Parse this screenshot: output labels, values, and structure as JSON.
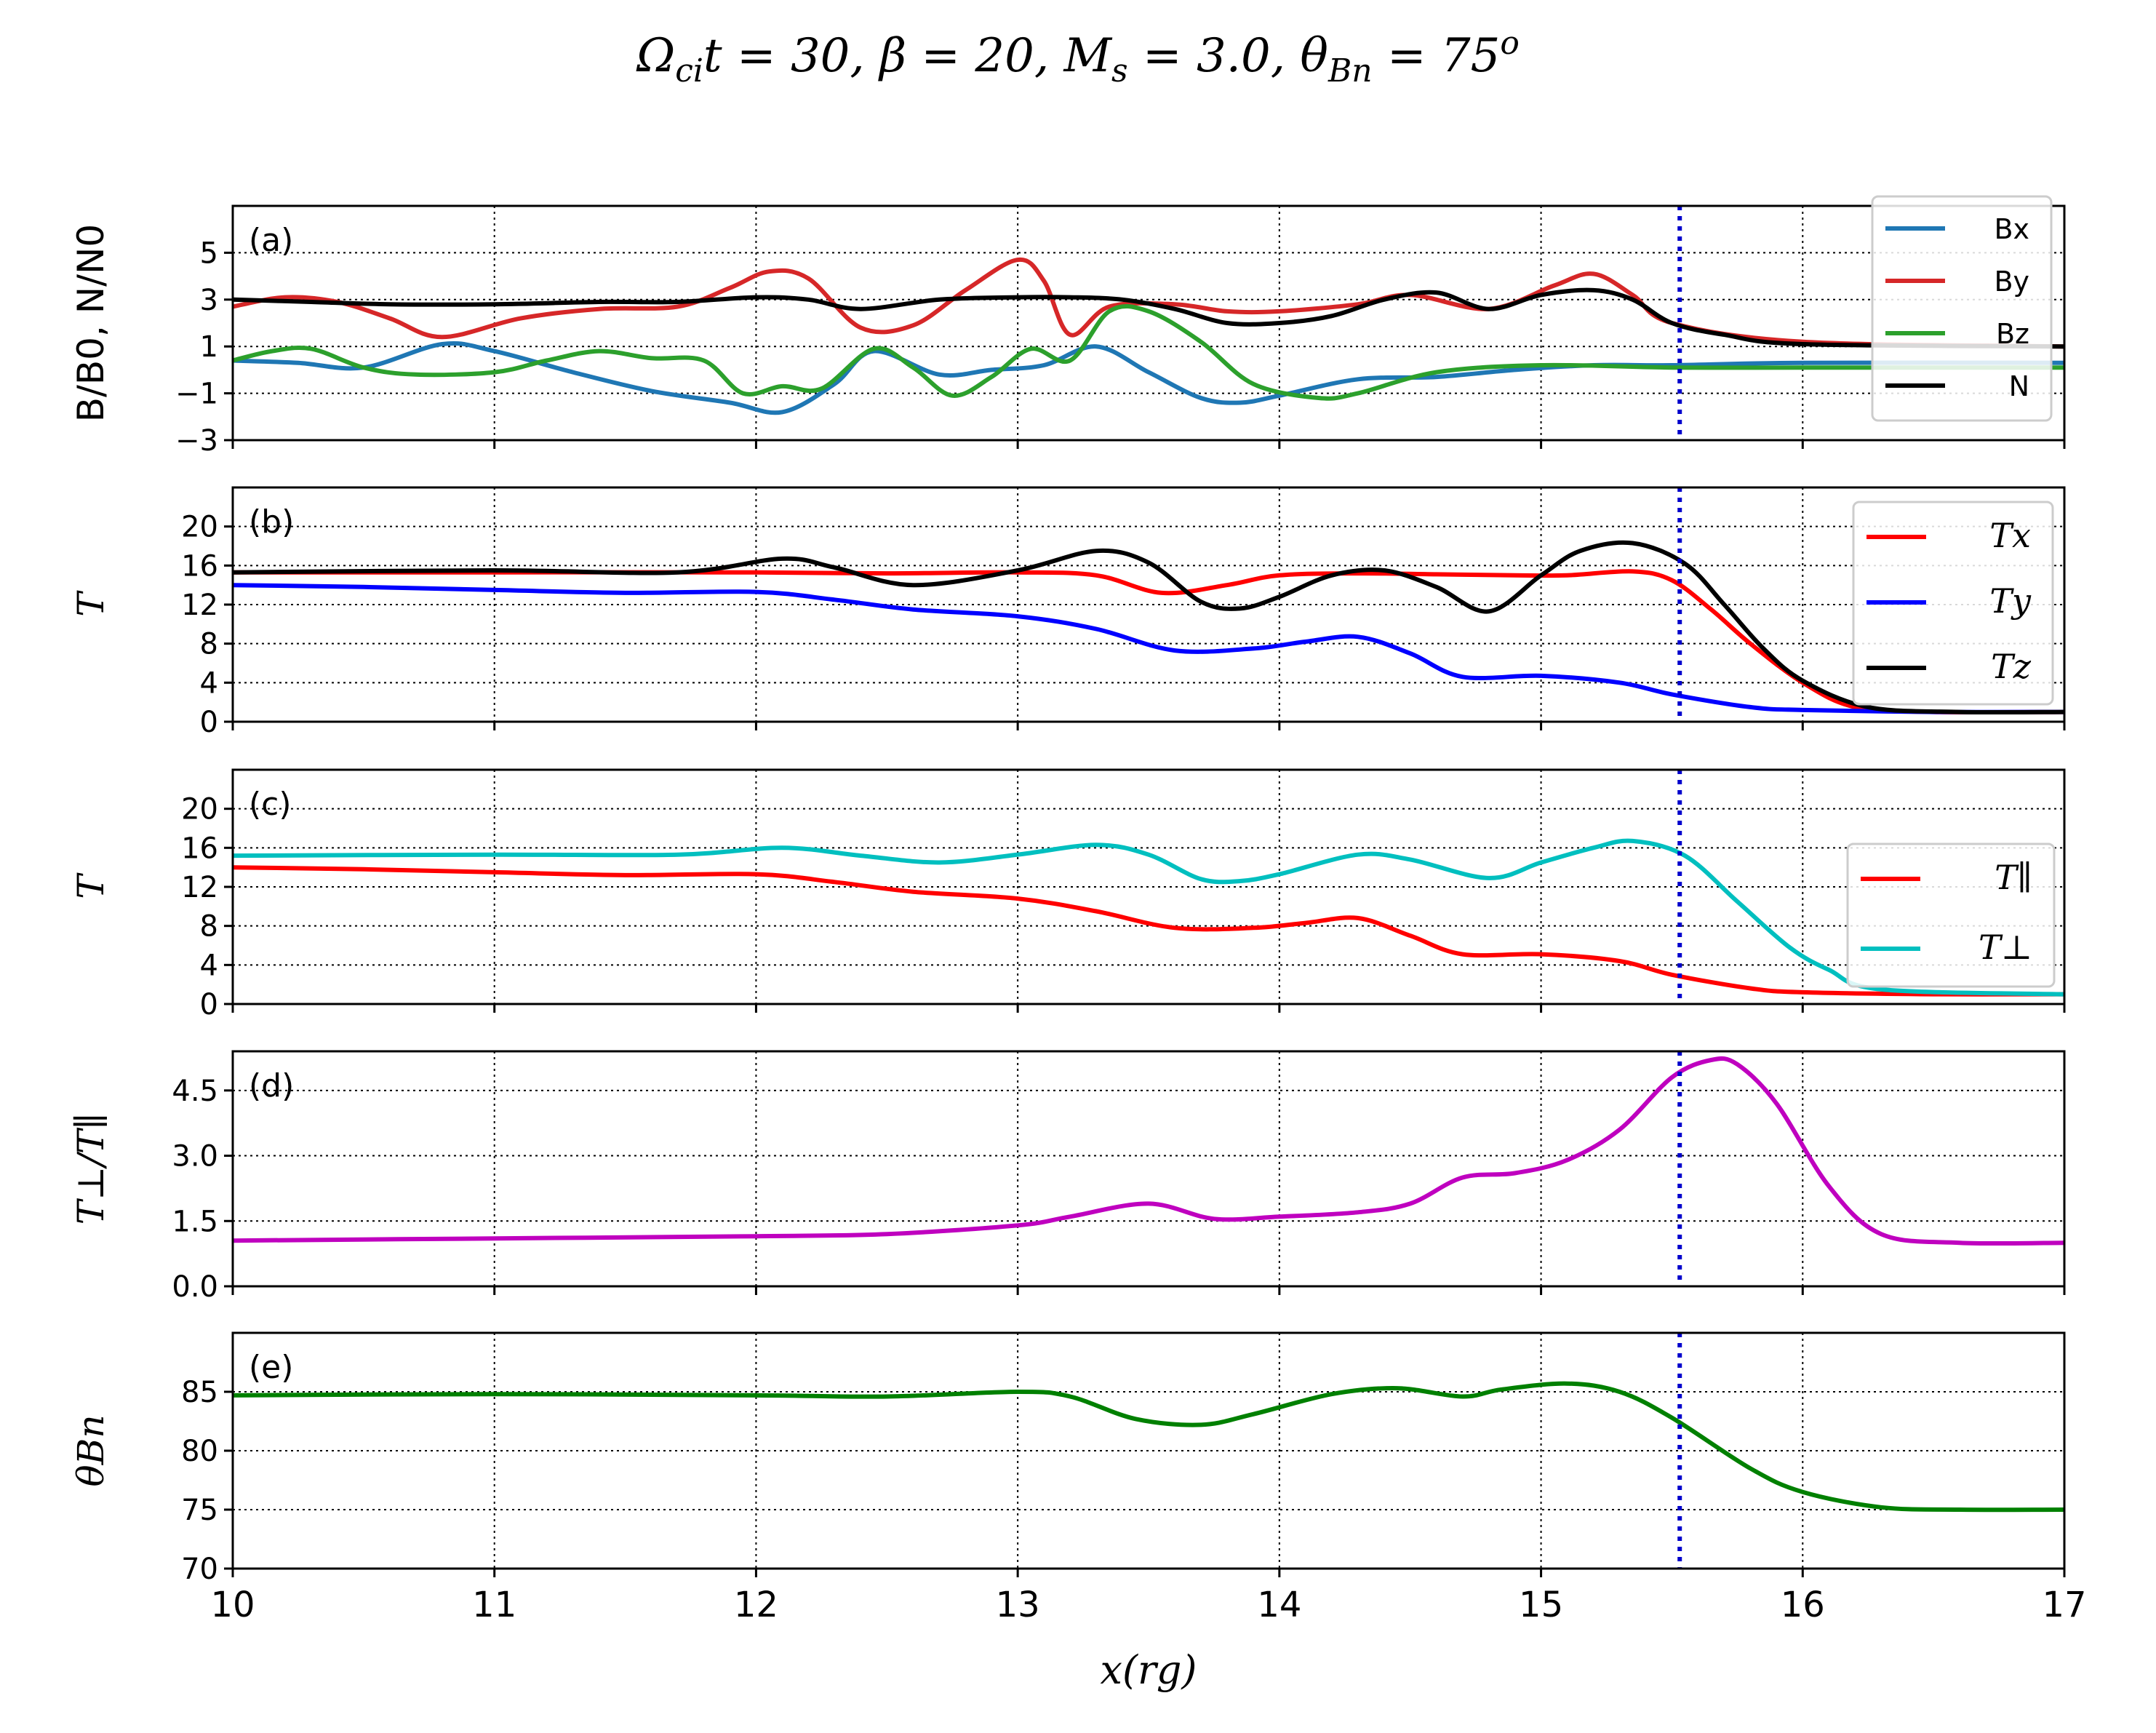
{
  "title": {
    "omega_ci_t": "Ωcit = 30, ",
    "beta": "β = 20, ",
    "mach": "Ms = 3.0, ",
    "theta": "θBn = 75o"
  },
  "colors": {
    "bx": "#1f77b4",
    "by": "#d62728",
    "bz": "#2ca02c",
    "n": "#000000",
    "tx": "#ff0000",
    "ty": "#0000ff",
    "tz": "#000000",
    "tpar": "#ff0000",
    "tperp": "#00bfbf",
    "ratio": "#bf00bf",
    "theta": "#008000",
    "shock": "#0000cc"
  },
  "chart_data": [
    {
      "panel": "(a)",
      "type": "line",
      "ylabel": "B/B0, N/N0",
      "ylim": [
        -3,
        7
      ],
      "yticks": [
        -3,
        -1,
        1,
        3,
        5
      ],
      "xlim": [
        10,
        17
      ],
      "grid": true,
      "legend_position": "top-right",
      "series": [
        {
          "name": "Bx",
          "color": "bx",
          "x": [
            10,
            10.25,
            10.5,
            10.8,
            11,
            11.3,
            11.6,
            11.9,
            12.1,
            12.3,
            12.45,
            12.7,
            12.9,
            13.1,
            13.3,
            13.5,
            13.7,
            13.85,
            14,
            14.3,
            14.6,
            14.9,
            15.2,
            15.5,
            16,
            17
          ],
          "y": [
            0.4,
            0.3,
            0.1,
            1.1,
            0.8,
            -0.1,
            -0.9,
            -1.4,
            -1.8,
            -0.6,
            0.8,
            -0.2,
            0,
            0.2,
            1,
            -0.1,
            -1.2,
            -1.4,
            -1.1,
            -0.4,
            -0.3,
            0,
            0.2,
            0.2,
            0.3,
            0.3
          ]
        },
        {
          "name": "By",
          "color": "by",
          "x": [
            10,
            10.2,
            10.4,
            10.6,
            10.8,
            11.1,
            11.4,
            11.7,
            11.9,
            12.05,
            12.2,
            12.4,
            12.6,
            12.8,
            13,
            13.1,
            13.2,
            13.35,
            13.6,
            13.8,
            14,
            14.3,
            14.5,
            14.8,
            15.05,
            15.2,
            15.35,
            15.5,
            16,
            17
          ],
          "y": [
            2.7,
            3.1,
            2.9,
            2.2,
            1.4,
            2.2,
            2.6,
            2.7,
            3.5,
            4.2,
            3.9,
            1.8,
            1.9,
            3.4,
            4.7,
            3.8,
            1.5,
            2.7,
            2.8,
            2.5,
            2.5,
            2.8,
            3.2,
            2.6,
            3.6,
            4.1,
            3.2,
            2,
            1.2,
            1
          ]
        },
        {
          "name": "Bz",
          "color": "bz",
          "x": [
            10,
            10.15,
            10.3,
            10.5,
            10.7,
            11,
            11.2,
            11.4,
            11.6,
            11.8,
            11.95,
            12.1,
            12.25,
            12.45,
            12.6,
            12.75,
            12.9,
            13.05,
            13.2,
            13.35,
            13.5,
            13.7,
            13.9,
            14.15,
            14.3,
            14.6,
            15,
            15.5,
            16,
            17
          ],
          "y": [
            0.4,
            0.8,
            0.9,
            0.1,
            -0.2,
            -0.1,
            0.4,
            0.8,
            0.5,
            0.4,
            -1,
            -0.7,
            -0.8,
            0.9,
            0.1,
            -1.1,
            -0.3,
            0.9,
            0.4,
            2.5,
            2.5,
            1.2,
            -0.6,
            -1.2,
            -1,
            -0.1,
            0.2,
            0.1,
            0.1,
            0.1
          ]
        },
        {
          "name": "N",
          "color": "n",
          "x": [
            10,
            10.3,
            10.6,
            11,
            11.4,
            11.7,
            12,
            12.2,
            12.4,
            12.7,
            13,
            13.2,
            13.4,
            13.6,
            13.8,
            14,
            14.2,
            14.4,
            14.6,
            14.8,
            15,
            15.2,
            15.35,
            15.5,
            15.7,
            16,
            17
          ],
          "y": [
            3,
            2.9,
            2.8,
            2.8,
            2.9,
            2.9,
            3.1,
            3,
            2.6,
            3,
            3.1,
            3.1,
            3,
            2.6,
            2,
            2,
            2.3,
            3,
            3.3,
            2.6,
            3.2,
            3.4,
            3,
            2,
            1.5,
            1.1,
            1
          ]
        }
      ]
    },
    {
      "panel": "(b)",
      "type": "line",
      "ylabel": "T",
      "ylim": [
        0,
        24
      ],
      "yticks": [
        0,
        4,
        8,
        12,
        16,
        20
      ],
      "xlim": [
        10,
        17
      ],
      "grid": true,
      "legend_position": "right",
      "series": [
        {
          "name": "T_x",
          "color": "tx",
          "x": [
            10,
            11,
            12,
            12.5,
            13,
            13.3,
            13.55,
            13.8,
            14,
            14.3,
            14.6,
            14.9,
            15.1,
            15.35,
            15.5,
            15.65,
            15.8,
            16,
            16.2,
            16.5,
            17
          ],
          "y": [
            15.3,
            15.3,
            15.3,
            15.2,
            15.3,
            15,
            13.2,
            14,
            15,
            15.2,
            15.1,
            15,
            15,
            15.4,
            14.5,
            11.5,
            8,
            4,
            1.5,
            1,
            1
          ]
        },
        {
          "name": "T_y",
          "color": "ty",
          "x": [
            10,
            10.5,
            11,
            11.5,
            12,
            12.3,
            12.6,
            13,
            13.3,
            13.6,
            13.9,
            14.1,
            14.3,
            14.5,
            14.7,
            15,
            15.3,
            15.5,
            15.8,
            16,
            16.5,
            17
          ],
          "y": [
            14,
            13.8,
            13.5,
            13.2,
            13.3,
            12.5,
            11.5,
            10.8,
            9.5,
            7.3,
            7.5,
            8.2,
            8.7,
            7,
            4.6,
            4.7,
            4,
            2.8,
            1.5,
            1.2,
            1,
            1
          ]
        },
        {
          "name": "T_z",
          "color": "tz",
          "x": [
            10,
            11,
            11.7,
            12.1,
            12.3,
            12.6,
            13,
            13.3,
            13.5,
            13.7,
            13.85,
            14,
            14.2,
            14.4,
            14.6,
            14.8,
            15,
            15.15,
            15.35,
            15.55,
            15.7,
            15.85,
            16,
            16.25,
            16.6,
            17
          ],
          "y": [
            15.3,
            15.5,
            15.3,
            16.7,
            15.8,
            14,
            15.5,
            17.5,
            16.3,
            12.3,
            11.6,
            12.8,
            15,
            15.5,
            13.8,
            11.3,
            15,
            17.5,
            18.3,
            16.2,
            12,
            7.5,
            4.2,
            1.5,
            1,
            1
          ]
        }
      ]
    },
    {
      "panel": "(c)",
      "type": "line",
      "ylabel": "T",
      "ylim": [
        0,
        24
      ],
      "yticks": [
        0,
        4,
        8,
        12,
        16,
        20
      ],
      "xlim": [
        10,
        17
      ],
      "grid": true,
      "legend_position": "right",
      "series": [
        {
          "name": "T_∥",
          "color": "tpar",
          "x": [
            10,
            10.5,
            11,
            11.5,
            12,
            12.3,
            12.6,
            13,
            13.3,
            13.6,
            13.9,
            14.1,
            14.3,
            14.5,
            14.7,
            15,
            15.3,
            15.5,
            15.8,
            16,
            16.5,
            17
          ],
          "y": [
            14,
            13.8,
            13.5,
            13.2,
            13.3,
            12.5,
            11.5,
            10.8,
            9.5,
            7.8,
            7.8,
            8.3,
            8.8,
            7,
            5.1,
            5.1,
            4.4,
            3,
            1.6,
            1.2,
            1,
            1
          ]
        },
        {
          "name": "T_⊥",
          "color": "tperp",
          "x": [
            10,
            11,
            11.7,
            12.1,
            12.4,
            12.7,
            13,
            13.3,
            13.5,
            13.7,
            13.85,
            14,
            14.3,
            14.5,
            14.8,
            15,
            15.2,
            15.35,
            15.55,
            15.75,
            15.95,
            16.1,
            16.3,
            17
          ],
          "y": [
            15.2,
            15.3,
            15.3,
            16,
            15.2,
            14.5,
            15.3,
            16.3,
            15.3,
            12.8,
            12.6,
            13.3,
            15.3,
            14.8,
            12.9,
            14.5,
            16,
            16.7,
            15.2,
            10.5,
            5.8,
            3.5,
            1.5,
            1
          ]
        }
      ]
    },
    {
      "panel": "(d)",
      "type": "line",
      "ylabel": "T⊥/T∥",
      "ylim": [
        0,
        5.4
      ],
      "yticks": [
        0.0,
        1.5,
        3.0,
        4.5
      ],
      "xlim": [
        10,
        17
      ],
      "grid": true,
      "series": [
        {
          "name": "T⊥/T∥",
          "color": "ratio",
          "x": [
            10,
            11,
            12,
            12.5,
            13,
            13.2,
            13.5,
            13.75,
            14,
            14.3,
            14.5,
            14.7,
            14.9,
            15.1,
            15.3,
            15.5,
            15.65,
            15.75,
            15.9,
            16.1,
            16.3,
            16.6,
            17
          ],
          "y": [
            1.05,
            1.1,
            1.15,
            1.2,
            1.4,
            1.6,
            1.9,
            1.55,
            1.6,
            1.7,
            1.9,
            2.5,
            2.6,
            2.9,
            3.6,
            4.8,
            5.2,
            5.1,
            4.2,
            2.3,
            1.2,
            1,
            1
          ]
        }
      ]
    },
    {
      "panel": "(e)",
      "type": "line",
      "ylabel": "θBn",
      "ylim": [
        70,
        90
      ],
      "yticks": [
        70,
        75,
        80,
        85
      ],
      "xlim": [
        10,
        17
      ],
      "xlabel": "x(rg)",
      "xticks": [
        10,
        11,
        12,
        13,
        14,
        15,
        16,
        17
      ],
      "grid": true,
      "series": [
        {
          "name": "θBn",
          "color": "theta",
          "x": [
            10,
            11,
            12,
            12.5,
            13,
            13.2,
            13.45,
            13.7,
            13.9,
            14.2,
            14.45,
            14.7,
            14.85,
            15.1,
            15.3,
            15.5,
            15.8,
            16,
            16.3,
            16.6,
            17
          ],
          "y": [
            84.7,
            84.8,
            84.7,
            84.6,
            85,
            84.6,
            82.7,
            82.2,
            83.1,
            84.8,
            85.3,
            84.6,
            85.2,
            85.7,
            85,
            82.8,
            78.5,
            76.5,
            75.2,
            75,
            75
          ]
        }
      ]
    }
  ],
  "shock_x": 15.53,
  "panel_labels": [
    "(a)",
    "(b)",
    "(c)",
    "(d)",
    "(e)"
  ],
  "ylabels": {
    "a": "B/B0, N/N0",
    "b": "T",
    "c": "T",
    "d": "T⊥/T∥",
    "e": "θBn"
  },
  "legends": {
    "a": [
      "Bx",
      "By",
      "Bz",
      "N"
    ],
    "b": [
      "Tx",
      "Ty",
      "Tz"
    ],
    "c": [
      "T∥",
      "T⊥"
    ]
  },
  "xlabel": "x(rg)",
  "xtick_labels": [
    "10",
    "11",
    "12",
    "13",
    "14",
    "15",
    "16",
    "17"
  ],
  "ytick_labels": {
    "a": [
      "−3",
      "−1",
      "1",
      "3",
      "5"
    ],
    "b": [
      "0",
      "4",
      "8",
      "12",
      "16",
      "20"
    ],
    "c": [
      "0",
      "4",
      "8",
      "12",
      "16",
      "20"
    ],
    "d": [
      "0.0",
      "1.5",
      "3.0",
      "4.5"
    ],
    "e": [
      "70",
      "75",
      "80",
      "85"
    ]
  }
}
